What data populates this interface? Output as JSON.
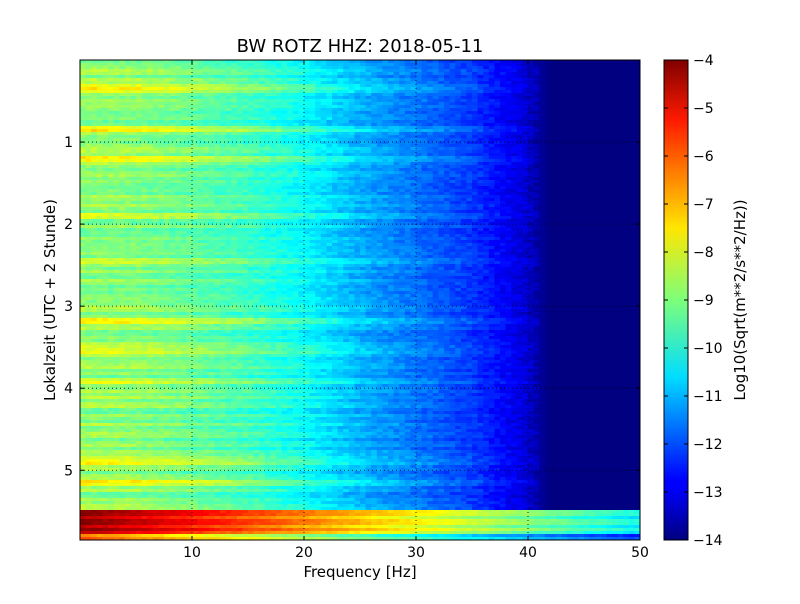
{
  "chart_data": {
    "type": "heatmap",
    "title": "BW ROTZ HHZ: 2018-05-11",
    "xlabel": "Frequency [Hz]",
    "ylabel": "Lokalzeit (UTC + 2 Stunde)",
    "xlim": [
      0,
      50
    ],
    "ylim": [
      5.85,
      0
    ],
    "y_inverted": true,
    "grid": true,
    "grid_style": "dotted",
    "xticks": [
      10,
      20,
      30,
      40,
      50
    ],
    "yticks": [
      1,
      2,
      3,
      4,
      5
    ],
    "colormap": "jet",
    "colorbar": {
      "label": "Log10(Sqrt(m**2/s**2/Hz))",
      "range": [
        -14,
        -4
      ],
      "ticks": [
        -4,
        -5,
        -6,
        -7,
        -8,
        -9,
        -10,
        -11,
        -12,
        -13,
        -14
      ]
    },
    "level_profile": {
      "frequency_hz": [
        0,
        5,
        10,
        15,
        20,
        25,
        30,
        35,
        40,
        41,
        42,
        50
      ],
      "log10_amplitude": [
        -8.8,
        -8.9,
        -9.2,
        -9.6,
        -10.2,
        -11.0,
        -11.6,
        -12.2,
        -13.2,
        -13.7,
        -14.0,
        -14.0
      ]
    },
    "high_activity_rows_hours": [
      0.35,
      0.85,
      1.2,
      1.9,
      2.45,
      3.17,
      3.53,
      3.9,
      4.88,
      5.15
    ],
    "saturated_band_hours": [
      5.5,
      5.85
    ],
    "saturated_band_level": -4
  }
}
